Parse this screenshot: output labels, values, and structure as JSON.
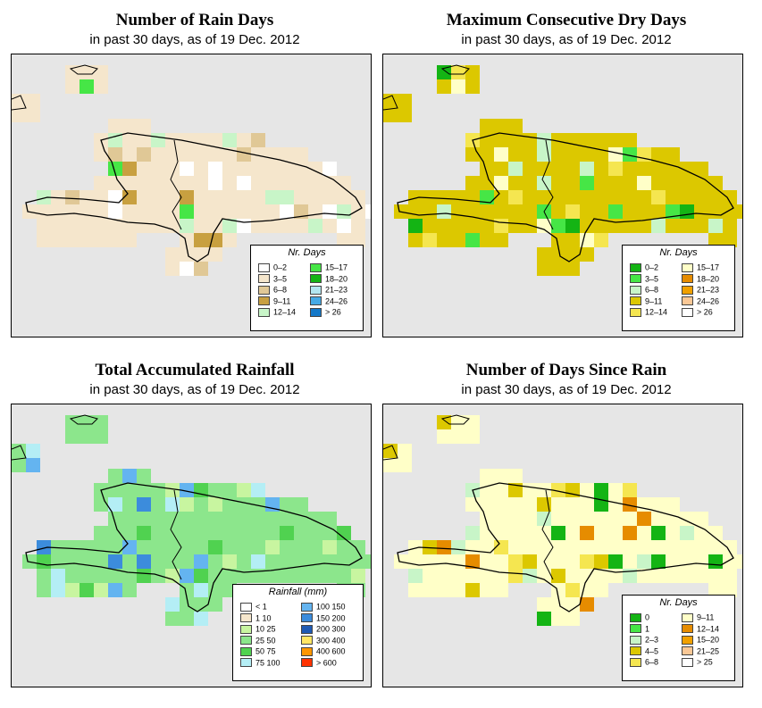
{
  "panels": [
    {
      "title": "Number of Rain Days",
      "subtitle": "in past 30 days, as of  19 Dec. 2012",
      "legend": {
        "title": "Nr. Days",
        "items": [
          {
            "label": "0–2",
            "color": "#ffffff"
          },
          {
            "label": "3–5",
            "color": "#f5e6cc"
          },
          {
            "label": "6–8",
            "color": "#e0c896"
          },
          {
            "label": "9–11",
            "color": "#c8a040"
          },
          {
            "label": "12–14",
            "color": "#c8f5c8"
          },
          {
            "label": "15–17",
            "color": "#46e646"
          },
          {
            "label": "18–20",
            "color": "#14b414"
          },
          {
            "label": "21–23",
            "color": "#b4e6f0"
          },
          {
            "label": "24–26",
            "color": "#46aae6"
          },
          {
            "label": "> 26",
            "color": "#1478c8"
          }
        ]
      }
    },
    {
      "title": "Maximum Consecutive Dry Days",
      "subtitle": "in past 30 days, as of  19 Dec. 2012",
      "legend": {
        "title": "Nr. Days",
        "items": [
          {
            "label": "0–2",
            "color": "#14b414"
          },
          {
            "label": "3–5",
            "color": "#46e646"
          },
          {
            "label": "6–8",
            "color": "#c8f5c8"
          },
          {
            "label": "9–11",
            "color": "#dcc800"
          },
          {
            "label": "12–14",
            "color": "#f5e650"
          },
          {
            "label": "15–17",
            "color": "#ffffc8"
          },
          {
            "label": "18–20",
            "color": "#e68c00"
          },
          {
            "label": "21–23",
            "color": "#f0a000"
          },
          {
            "label": "24–26",
            "color": "#fac896"
          },
          {
            "label": "> 26",
            "color": "#ffffff"
          }
        ]
      }
    },
    {
      "title": "Total Accumulated Rainfall",
      "subtitle": "in past 30 days, as of  19 Dec. 2012",
      "legend": {
        "title": "Rainfall (mm)",
        "items": [
          {
            "label": "< 1",
            "color": "#ffffff"
          },
          {
            "label": "1  10",
            "color": "#f5e6cc"
          },
          {
            "label": "10  25",
            "color": "#c8f5a0"
          },
          {
            "label": "25  50",
            "color": "#8ce68c"
          },
          {
            "label": "50  75",
            "color": "#50d250"
          },
          {
            "label": "75  100",
            "color": "#b4eef5"
          },
          {
            "label": "100  150",
            "color": "#64b4f0"
          },
          {
            "label": "150  200",
            "color": "#3c8cdc"
          },
          {
            "label": "200  300",
            "color": "#1e5ab4"
          },
          {
            "label": "300  400",
            "color": "#ffe664"
          },
          {
            "label": "400  600",
            "color": "#ff9600"
          },
          {
            "label": "> 600",
            "color": "#ff3200"
          }
        ]
      }
    },
    {
      "title": "Number of Days Since Rain",
      "subtitle": "in past 30 days, as of  19 Dec. 2012",
      "legend": {
        "title": "Nr. Days",
        "items": [
          {
            "label": "0",
            "color": "#14b414"
          },
          {
            "label": "1",
            "color": "#46e646"
          },
          {
            "label": "2–3",
            "color": "#c8f5c8"
          },
          {
            "label": "4–5",
            "color": "#dcc800"
          },
          {
            "label": "6–8",
            "color": "#f5e650"
          },
          {
            "label": "9–11",
            "color": "#ffffc8"
          },
          {
            "label": "12–14",
            "color": "#e68c00"
          },
          {
            "label": "15–20",
            "color": "#f0a000"
          },
          {
            "label": "21–25",
            "color": "#fac896"
          },
          {
            "label": "> 25",
            "color": "#ffffff"
          }
        ]
      }
    }
  ],
  "maps": [
    {
      "base": "#f5e6cc",
      "accents": [
        "#ffffff",
        "#e0c896",
        "#c8a040",
        "#46e646",
        "#c8f5c8"
      ]
    },
    {
      "base": "#dcc800",
      "accents": [
        "#f5e650",
        "#c8f5c8",
        "#46e646",
        "#14b414",
        "#ffffc8"
      ]
    },
    {
      "base": "#8ce68c",
      "accents": [
        "#50d250",
        "#c8f5a0",
        "#b4eef5",
        "#64b4f0",
        "#3c8cdc"
      ]
    },
    {
      "base": "#ffffc8",
      "accents": [
        "#e68c00",
        "#dcc800",
        "#f5e650",
        "#14b414",
        "#c8f5c8"
      ]
    }
  ]
}
